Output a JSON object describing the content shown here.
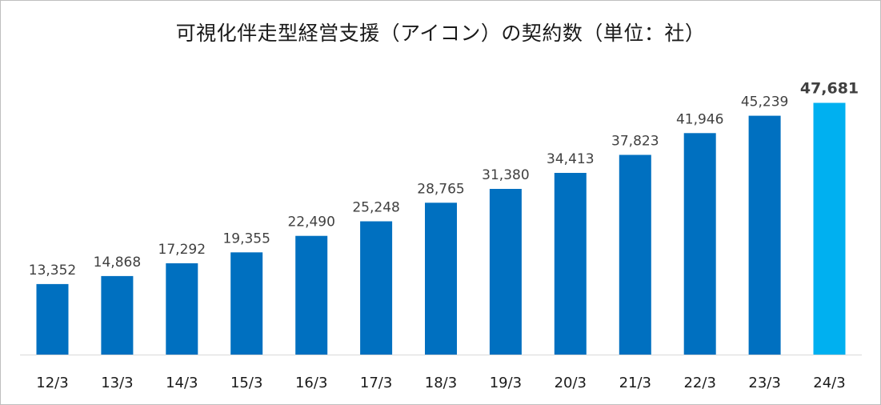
{
  "chart_data": {
    "type": "bar",
    "title": "可視化伴走型経営支援（アイコン）の契約数（単位：社）",
    "categories": [
      "12/3",
      "13/3",
      "14/3",
      "15/3",
      "16/3",
      "17/3",
      "18/3",
      "19/3",
      "20/3",
      "21/3",
      "22/3",
      "23/3",
      "24/3"
    ],
    "values": [
      13352,
      14868,
      17292,
      19355,
      22490,
      25248,
      28765,
      31380,
      34413,
      37823,
      41946,
      45239,
      47681
    ],
    "value_labels": [
      "13,352",
      "14,868",
      "17,292",
      "19,355",
      "22,490",
      "25,248",
      "28,765",
      "31,380",
      "34,413",
      "37,823",
      "41,946",
      "45,239",
      "47,681"
    ],
    "ylim": [
      0,
      52000
    ],
    "grid": false,
    "legend": "none",
    "highlight_index": 12,
    "colors": {
      "bar": "#0070c0",
      "highlight": "#00b0f0",
      "axis": "#d9d9d9"
    }
  }
}
